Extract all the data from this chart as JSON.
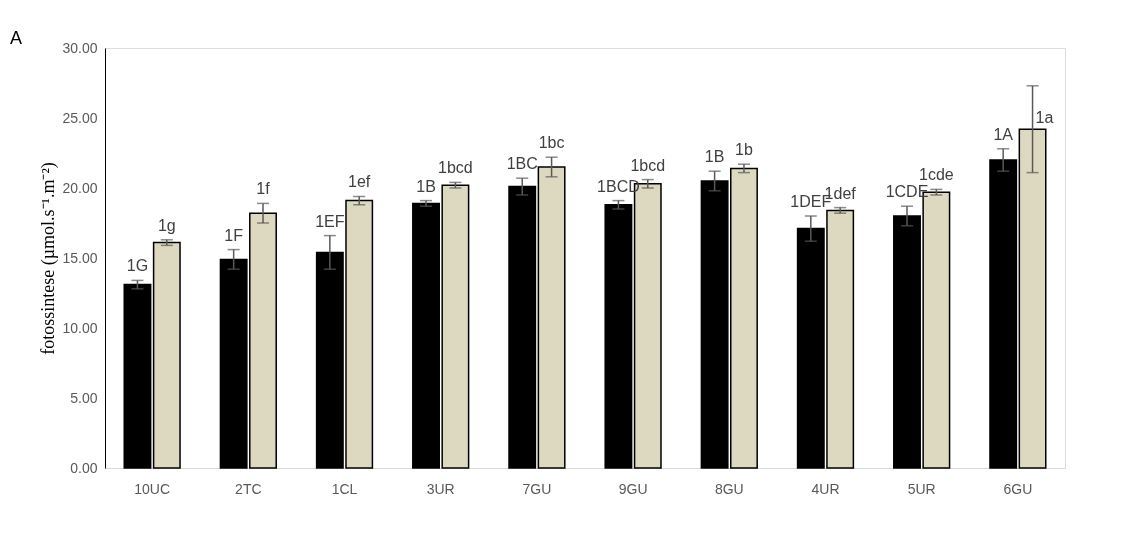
{
  "chart_data": {
    "type": "bar",
    "categories": [
      "10UC",
      "2TC",
      "1CL",
      "3UR",
      "7GU",
      "9GU",
      "8GU",
      "4UR",
      "5UR",
      "6GU"
    ],
    "ylabel": "fotossintese (µmol.s⁻¹.m⁻²)",
    "annotations": [
      "A",
      {
        "text": "1G",
        "x": "10UC",
        "y": 13.1
      },
      {
        "text": "1g",
        "x": "10UC",
        "y": 16.1
      },
      {
        "text": "1F",
        "x": "2TC",
        "y": 14.9
      },
      {
        "text": "1f",
        "x": "2TC",
        "y": 18.2
      },
      {
        "text": "1EF",
        "x": "1CL",
        "y": 15.4
      },
      {
        "text": "1ef",
        "x": "1CL",
        "y": 19.1
      },
      {
        "text": "1B",
        "x": "3UR",
        "y": 18.9
      },
      {
        "text": "1bcd",
        "x": "3UR",
        "y": 20.2
      },
      {
        "text": "1BC",
        "x": "7GU",
        "y": 20.1
      },
      {
        "text": "1bc",
        "x": "7GU",
        "y": 21.5
      },
      {
        "text": "1BCD",
        "x": "9GU",
        "y": 18.8
      },
      {
        "text": "1bcd",
        "x": "9GU",
        "y": 20.3
      },
      {
        "text": "1B",
        "x": "8GU",
        "y": 20.5
      },
      {
        "text": "1b",
        "x": "8GU",
        "y": 21.4
      },
      {
        "text": "1DEF",
        "x": "4UR",
        "y": 17.1
      },
      {
        "text": "1def",
        "x": "4UR",
        "y": 18.4
      },
      {
        "text": "1CDE",
        "x": "5UR",
        "y": 18.0
      },
      {
        "text": "1cde",
        "x": "5UR",
        "y": 19.7
      },
      {
        "text": "1A",
        "x": "6GU",
        "y": 22.0
      },
      {
        "text": "1a",
        "x": "6GU",
        "y": 24.2
      }
    ],
    "series": [
      {
        "color": "#000000",
        "values": [
          13.1,
          14.9,
          15.4,
          18.9,
          20.1,
          18.8,
          20.5,
          17.1,
          18.0,
          22.0
        ],
        "errors": [
          0.3,
          0.7,
          1.2,
          0.2,
          0.6,
          0.3,
          0.7,
          0.9,
          0.7,
          0.8
        ]
      },
      {
        "color": "#ddd8c0",
        "values": [
          16.1,
          18.2,
          19.1,
          20.2,
          21.5,
          20.3,
          21.4,
          18.4,
          19.7,
          24.2
        ],
        "errors": [
          0.2,
          0.7,
          0.3,
          0.2,
          0.7,
          0.3,
          0.3,
          0.2,
          0.2,
          3.1
        ]
      }
    ],
    "ylim": [
      0,
      30
    ],
    "yticks": [
      {
        "value": 0,
        "label": "0.00"
      },
      {
        "value": 5,
        "label": "5.00"
      },
      {
        "value": 10,
        "label": "10.00"
      },
      {
        "value": 15,
        "label": "15.00"
      },
      {
        "value": 20,
        "label": "20.00"
      },
      {
        "value": 25,
        "label": "25.00"
      },
      {
        "value": 30,
        "label": "30.00"
      }
    ],
    "grid": false,
    "legend": false
  }
}
